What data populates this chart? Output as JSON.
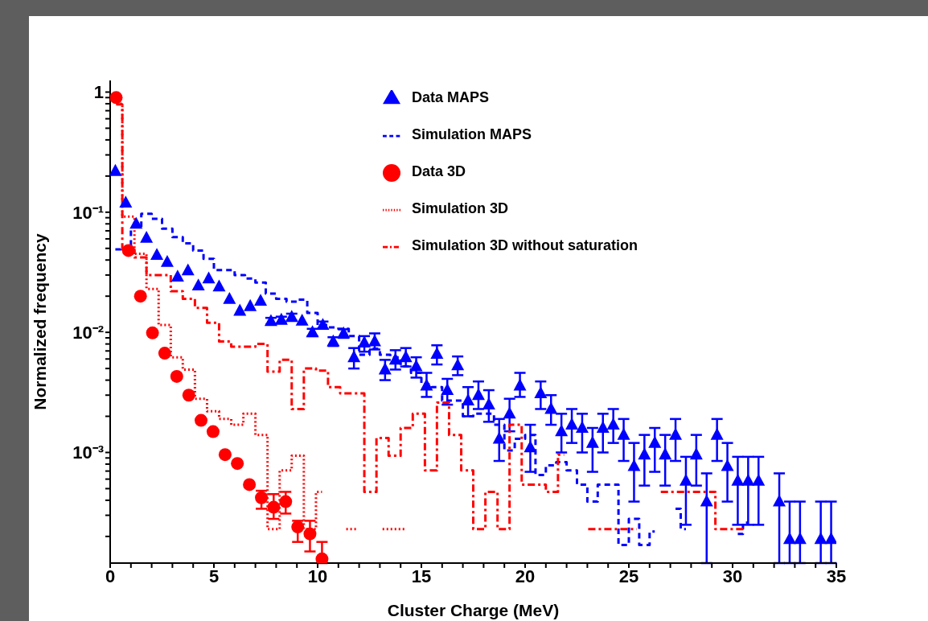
{
  "chart_data": {
    "type": "step",
    "xlabel": "Cluster Charge (MeV)",
    "ylabel": "Normalized frequency",
    "xlim": [
      0,
      35
    ],
    "xticks": [
      0,
      {
        "value": 1,
        "label": null
      },
      {
        "value": 2,
        "label": null
      },
      {
        "value": 3,
        "label": null
      },
      {
        "value": 4,
        "label": null
      },
      5,
      {
        "value": 6,
        "label": null
      },
      {
        "value": 7,
        "label": null
      },
      {
        "value": 8,
        "label": null
      },
      {
        "value": 9,
        "label": null
      },
      10,
      {
        "value": 11,
        "label": null
      },
      {
        "value": 12,
        "label": null
      },
      {
        "value": 13,
        "label": null
      },
      {
        "value": 14,
        "label": null
      },
      15,
      {
        "value": 16,
        "label": null
      },
      {
        "value": 17,
        "label": null
      },
      {
        "value": 18,
        "label": null
      },
      {
        "value": 19,
        "label": null
      },
      20,
      {
        "value": 21,
        "label": null
      },
      {
        "value": 22,
        "label": null
      },
      {
        "value": 23,
        "label": null
      },
      {
        "value": 24,
        "label": null
      },
      25,
      {
        "value": 26,
        "label": null
      },
      {
        "value": 27,
        "label": null
      },
      {
        "value": 28,
        "label": null
      },
      {
        "value": 29,
        "label": null
      },
      30,
      {
        "value": 31,
        "label": null
      },
      {
        "value": 32,
        "label": null
      },
      {
        "value": 33,
        "label": null
      },
      {
        "value": 34,
        "label": null
      },
      35
    ],
    "ylim": [
      0.00012,
      1.25
    ],
    "yticks": [
      {
        "value": 0.0002,
        "label": null
      },
      {
        "value": 0.0003,
        "label": null
      },
      {
        "value": 0.0004,
        "label": null
      },
      {
        "value": 0.0005,
        "label": null
      },
      {
        "value": 0.0006,
        "label": null
      },
      {
        "value": 0.0007,
        "label": null
      },
      {
        "value": 0.0008,
        "label": null
      },
      {
        "value": 0.0009,
        "label": null
      },
      {
        "value": 0.001,
        "label": "10⁻³"
      },
      {
        "value": 0.002,
        "label": null
      },
      {
        "value": 0.003,
        "label": null
      },
      {
        "value": 0.004,
        "label": null
      },
      {
        "value": 0.005,
        "label": null
      },
      {
        "value": 0.006,
        "label": null
      },
      {
        "value": 0.007,
        "label": null
      },
      {
        "value": 0.008,
        "label": null
      },
      {
        "value": 0.009,
        "label": null
      },
      {
        "value": 0.01,
        "label": "10⁻²"
      },
      {
        "value": 0.02,
        "label": null
      },
      {
        "value": 0.03,
        "label": null
      },
      {
        "value": 0.04,
        "label": null
      },
      {
        "value": 0.05,
        "label": null
      },
      {
        "value": 0.06,
        "label": null
      },
      {
        "value": 0.07,
        "label": null
      },
      {
        "value": 0.08,
        "label": null
      },
      {
        "value": 0.09,
        "label": null
      },
      {
        "value": 0.1,
        "label": "10⁻¹"
      },
      {
        "value": 0.2,
        "label": null
      },
      {
        "value": 0.3,
        "label": null
      },
      {
        "value": 0.4,
        "label": null
      },
      {
        "value": 0.5,
        "label": null
      },
      {
        "value": 0.6,
        "label": null
      },
      {
        "value": 0.7,
        "label": null
      },
      {
        "value": 0.8,
        "label": null
      },
      {
        "value": 0.9,
        "label": null
      },
      1
    ],
    "log": "y",
    "legend": "top",
    "series": [
      {
        "name": "Data MAPS",
        "type": "scatter",
        "marker": "triangle",
        "color": "#0000ff",
        "x": [
          0.25,
          0.75,
          1.25,
          1.75,
          2.25,
          2.75,
          3.25,
          3.75,
          4.25,
          4.75,
          5.25,
          5.75,
          6.25,
          6.75,
          7.25,
          7.75,
          8.25,
          8.75,
          9.25,
          9.75,
          10.25,
          10.75,
          11.25,
          11.75,
          12.25,
          12.75,
          13.25,
          13.75,
          14.25,
          14.75,
          15.25,
          15.75,
          16.25,
          16.75,
          17.25,
          17.75,
          18.25,
          18.75,
          19.25,
          19.75,
          20.25,
          20.75,
          21.25,
          21.75,
          22.25,
          22.75,
          23.25,
          23.75,
          24.25,
          24.75,
          25.25,
          25.75,
          26.25,
          26.75,
          27.25,
          27.75,
          28.25,
          28.75,
          29.25,
          29.75,
          30.25,
          30.75,
          31.25,
          31.75,
          32.25,
          32.75,
          33.25,
          33.75,
          34.25,
          34.75
        ],
        "values": [
          0.22,
          0.12,
          0.08,
          0.061,
          0.044,
          0.0385,
          0.029,
          0.0327,
          0.0245,
          0.028,
          0.024,
          0.0189,
          0.0151,
          0.0165,
          0.0183,
          0.0124,
          0.0127,
          0.0134,
          0.0125,
          0.01,
          0.0115,
          0.0084,
          0.0098,
          0.0062,
          0.0082,
          0.0084,
          0.0049,
          0.0059,
          0.0062,
          0.0052,
          0.0036,
          0.0066,
          0.0033,
          0.0053,
          0.0027,
          0.003,
          0.0025,
          0.0013,
          0.0021,
          0.0036,
          0.0011,
          0.0031,
          0.0023,
          0.0015,
          0.0017,
          0.0016,
          0.0012,
          0.0016,
          0.0017,
          0.0014,
          0.00077,
          0.00096,
          0.0012,
          0.00096,
          0.0014,
          0.00058,
          0.00096,
          0.00039,
          0.0014,
          0.00077,
          0.00058,
          0.00058,
          0.00058,
          null,
          0.00039,
          0.00019,
          0.00019,
          null,
          0.00019,
          0.00019
        ],
        "errors": [
          null,
          null,
          null,
          null,
          null,
          null,
          null,
          null,
          null,
          null,
          null,
          null,
          null,
          null,
          null,
          [
            0.0116,
            0.0132
          ],
          [
            0.0119,
            0.0135
          ],
          [
            0.0125,
            0.0143
          ],
          null,
          [
            0.0093,
            0.0107
          ],
          [
            0.0107,
            0.0123
          ],
          [
            0.0077,
            0.0091
          ],
          [
            0.009,
            0.0106
          ],
          [
            0.005,
            0.0074
          ],
          [
            0.0069,
            0.0093
          ],
          [
            0.0072,
            0.0098
          ],
          [
            0.004,
            0.0059
          ],
          [
            0.0049,
            0.0071
          ],
          [
            0.0052,
            0.0074
          ],
          [
            0.0042,
            0.0062
          ],
          [
            0.0029,
            0.0046
          ],
          [
            0.0054,
            0.0078
          ],
          [
            0.0025,
            0.0041
          ],
          [
            0.0044,
            0.0063
          ],
          [
            0.002,
            0.0035
          ],
          [
            0.0023,
            0.0039
          ],
          [
            0.0018,
            0.0033
          ],
          [
            0.00085,
            0.0019
          ],
          [
            0.0015,
            0.0028
          ],
          [
            0.0029,
            0.0046
          ],
          [
            0.00069,
            0.0017
          ],
          [
            0.0023,
            0.0039
          ],
          [
            0.0017,
            0.003
          ],
          [
            0.001,
            0.0021
          ],
          [
            0.0012,
            0.0023
          ],
          [
            0.001,
            0.0021
          ],
          [
            0.00069,
            0.0016
          ],
          [
            0.001,
            0.0021
          ],
          [
            0.0012,
            0.0023
          ],
          [
            0.00085,
            0.0019
          ],
          [
            0.00039,
            0.0012
          ],
          [
            0.00053,
            0.0014
          ],
          [
            0.00069,
            0.0016
          ],
          [
            0.00053,
            0.0014
          ],
          [
            0.00085,
            0.0019
          ],
          [
            0.00025,
            0.00092
          ],
          [
            0.00053,
            0.0014
          ],
          [
            0.00012,
            0.00067
          ],
          [
            0.00085,
            0.0019
          ],
          [
            0.00039,
            0.0012
          ],
          [
            0.00025,
            0.00092
          ],
          [
            0.00025,
            0.00092
          ],
          [
            0.00025,
            0.00092
          ],
          null,
          [
            0.00012,
            0.00067
          ],
          [
            0.00012,
            0.00039
          ],
          [
            0.00012,
            0.00039
          ],
          null,
          [
            0.00012,
            0.00039
          ],
          [
            0.00012,
            0.00039
          ]
        ]
      },
      {
        "name": "Simulation MAPS",
        "line_style": "dashed",
        "color": "#0000ff",
        "x": [
          0.25,
          0.75,
          1.25,
          1.75,
          2.25,
          2.75,
          3.25,
          3.75,
          4.25,
          4.75,
          5.25,
          5.75,
          6.25,
          6.75,
          7.25,
          7.75,
          8.25,
          8.75,
          9.25,
          9.75,
          10.25,
          10.75,
          11.25,
          11.75,
          12.25,
          12.75,
          13.25,
          13.75,
          14.25,
          14.75,
          15.25,
          15.75,
          16.25,
          16.75,
          17.25,
          17.75,
          18.25,
          18.75,
          19.25,
          19.75,
          20.25,
          20.75,
          21.25,
          21.75,
          22.25,
          22.75,
          23.25,
          23.75,
          24.25,
          24.75,
          25.25,
          25.75,
          26.25,
          26.75,
          27.25,
          27.75,
          28.25,
          28.75,
          29.25,
          29.75,
          30.25,
          30.75
        ],
        "values": [
          0.049,
          0.05,
          0.075,
          0.097,
          0.088,
          0.073,
          0.062,
          0.055,
          0.048,
          0.041,
          0.033,
          0.033,
          0.03,
          0.028,
          0.026,
          0.021,
          0.019,
          0.018,
          0.0187,
          0.0145,
          0.0115,
          0.011,
          0.0107,
          0.0093,
          0.0065,
          0.0073,
          0.0065,
          0.0062,
          0.0052,
          0.0046,
          0.0037,
          0.0035,
          0.0027,
          0.0027,
          0.002,
          0.0021,
          0.0021,
          0.0017,
          0.00104,
          0.0013,
          0.0014,
          0.00065,
          0.00078,
          0.00083,
          0.00071,
          0.00054,
          0.00039,
          0.00054,
          0.00054,
          0.00017,
          0.00028,
          0.00017,
          0.00022,
          null,
          0.00034,
          0.00023,
          null,
          null,
          null,
          null,
          0.00021,
          0.00026
        ]
      },
      {
        "name": "Data 3D",
        "type": "scatter",
        "marker": "circle",
        "color": "#ff0000",
        "x": [
          0.29,
          0.88,
          1.46,
          2.04,
          2.63,
          3.21,
          3.79,
          4.38,
          4.96,
          5.54,
          6.13,
          6.71,
          7.29,
          7.88,
          8.46,
          9.04,
          9.63,
          10.21
        ],
        "values": [
          0.9,
          0.048,
          0.02,
          0.0099,
          0.0067,
          0.0043,
          0.003,
          0.00185,
          0.00149,
          0.00096,
          0.00081,
          0.00054,
          0.00042,
          0.00035,
          0.00039,
          0.00024,
          0.00021,
          0.00013
        ],
        "errors": [
          null,
          null,
          null,
          null,
          null,
          null,
          null,
          null,
          null,
          null,
          null,
          null,
          [
            0.00034,
            0.00048
          ],
          [
            0.00028,
            0.00045
          ],
          [
            0.00031,
            0.00047
          ],
          [
            0.00018,
            0.00027
          ],
          [
            0.00015,
            0.00027
          ],
          [
            0.00012,
            0.00018
          ]
        ]
      },
      {
        "name": "Simulation 3D",
        "line_style": "dotted",
        "color": "#ff0000",
        "x": [
          0.29,
          0.88,
          1.46,
          2.04,
          2.63,
          3.21,
          3.79,
          4.38,
          4.96,
          5.54,
          6.13,
          6.71,
          7.29,
          7.88,
          8.46,
          9.04,
          9.63,
          10.21,
          10.79,
          11.38,
          11.96,
          12.54,
          13.13,
          13.71,
          14.29
        ],
        "values": [
          0.8,
          0.092,
          0.045,
          0.023,
          0.0115,
          0.0062,
          0.0049,
          0.0028,
          0.0022,
          0.0019,
          0.0017,
          0.0021,
          0.0014,
          0.00023,
          0.00071,
          0.00094,
          0.00023,
          0.00047,
          null,
          0.00023,
          0.00023,
          null,
          0.00023,
          0.00023,
          0.00023
        ]
      },
      {
        "name": "Simulation 3D without saturation",
        "line_style": "dashdot",
        "color": "#ff0000",
        "x": [
          0.29,
          0.88,
          1.46,
          2.04,
          2.63,
          3.21,
          3.79,
          4.38,
          4.96,
          5.54,
          6.13,
          6.71,
          7.29,
          7.88,
          8.46,
          9.04,
          9.63,
          10.21,
          10.79,
          11.38,
          11.96,
          12.54,
          13.13,
          13.71,
          14.29,
          14.88,
          15.46,
          16.04,
          16.63,
          17.21,
          17.79,
          18.38,
          18.96,
          19.54,
          20.13,
          20.71,
          21.29,
          21.88,
          22.46,
          23.04,
          23.63,
          24.21,
          24.79,
          25.38,
          25.96,
          26.54,
          27.13,
          27.71,
          28.29,
          28.88,
          29.46,
          30.04,
          30.63
        ],
        "values": [
          0.79,
          0.049,
          0.042,
          0.03,
          0.03,
          0.022,
          0.019,
          0.016,
          0.012,
          0.0084,
          0.0076,
          0.0076,
          0.008,
          0.0047,
          0.0059,
          0.0023,
          0.005,
          0.0048,
          0.0035,
          0.0031,
          0.0031,
          0.00047,
          0.00132,
          0.00094,
          0.0016,
          0.0021,
          0.00071,
          0.0026,
          0.0014,
          0.00071,
          0.00023,
          0.00047,
          0.00023,
          0.0017,
          0.00054,
          0.00054,
          0.00047,
          0.00096,
          null,
          0.00023,
          0.00023,
          0.00023,
          0.00023,
          0.00023,
          null,
          0.00047,
          0.00047,
          0.00047,
          0.00047,
          0.00047,
          0.00023,
          0.00023,
          0.00023
        ]
      }
    ]
  }
}
